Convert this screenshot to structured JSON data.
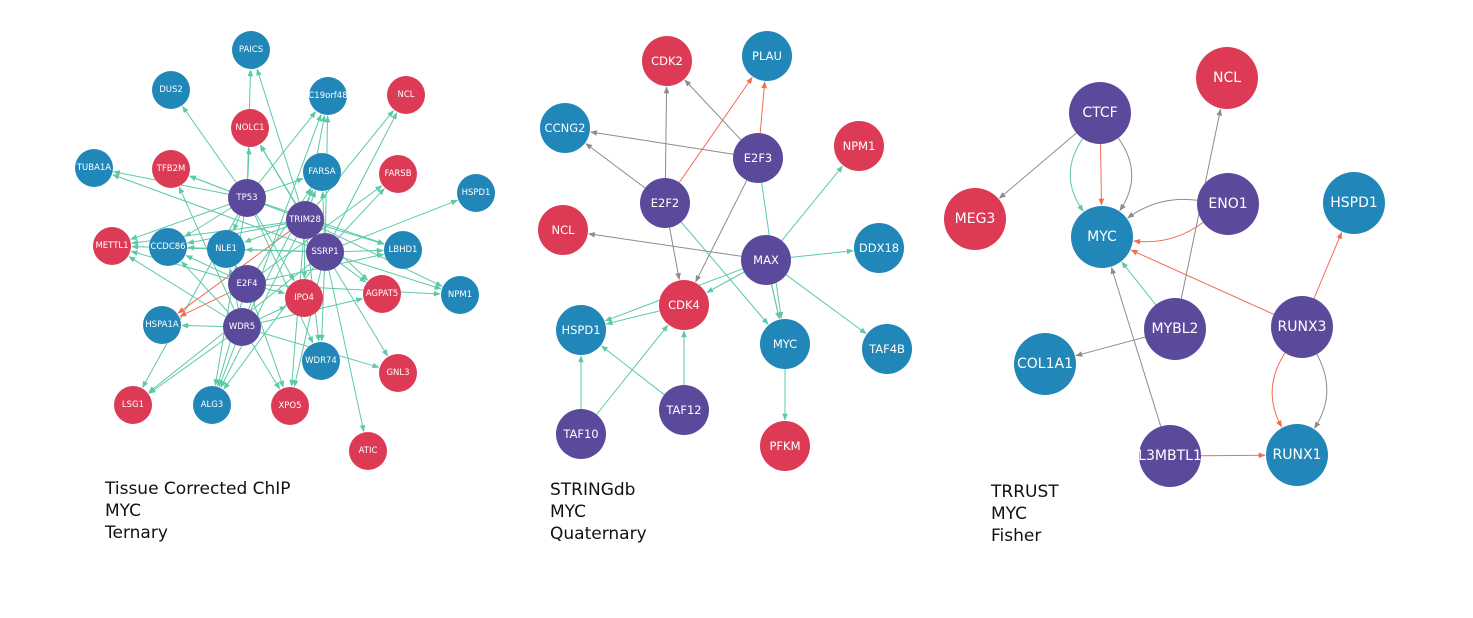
{
  "colors": {
    "gene_red": "#dc3a55",
    "gene_blue": "#2186b8",
    "tf_purple": "#5b4a9c",
    "edge_teal": "#5cc9a7",
    "edge_gray": "#8c8c8c",
    "edge_red": "#f26c52"
  },
  "networks": [
    {
      "id": "chip",
      "caption": [
        "Tissue Corrected ChIP",
        "MYC",
        "Ternary"
      ],
      "nodes": [
        {
          "id": "PAICS",
          "c": "blue"
        },
        {
          "id": "DUS2",
          "c": "blue"
        },
        {
          "id": "C19orf48",
          "c": "blue"
        },
        {
          "id": "NCL",
          "c": "red"
        },
        {
          "id": "NOLC1",
          "c": "red"
        },
        {
          "id": "TUBA1A",
          "c": "blue"
        },
        {
          "id": "TFB2M",
          "c": "red"
        },
        {
          "id": "FARSA",
          "c": "blue"
        },
        {
          "id": "FARSB",
          "c": "red"
        },
        {
          "id": "HSPD1",
          "c": "blue"
        },
        {
          "id": "TP53",
          "c": "purple"
        },
        {
          "id": "TRIM28",
          "c": "purple"
        },
        {
          "id": "METTL1",
          "c": "red"
        },
        {
          "id": "CCDC86",
          "c": "blue"
        },
        {
          "id": "NLE1",
          "c": "blue"
        },
        {
          "id": "SSRP1",
          "c": "purple"
        },
        {
          "id": "LBHD1",
          "c": "blue"
        },
        {
          "id": "E2F4",
          "c": "purple"
        },
        {
          "id": "IPO4",
          "c": "red"
        },
        {
          "id": "AGPAT5",
          "c": "red"
        },
        {
          "id": "NPM1",
          "c": "blue"
        },
        {
          "id": "HSPA1A",
          "c": "blue"
        },
        {
          "id": "WDR5",
          "c": "purple"
        },
        {
          "id": "WDR74",
          "c": "blue"
        },
        {
          "id": "GNL3",
          "c": "red"
        },
        {
          "id": "LSG1",
          "c": "red"
        },
        {
          "id": "ALG3",
          "c": "blue"
        },
        {
          "id": "XPO5",
          "c": "red"
        },
        {
          "id": "ATIC",
          "c": "red"
        }
      ],
      "edges": [
        [
          "TP53",
          "PAICS",
          "t"
        ],
        [
          "TP53",
          "DUS2",
          "t"
        ],
        [
          "TP53",
          "TUBA1A",
          "t"
        ],
        [
          "TP53",
          "TFB2M",
          "t"
        ],
        [
          "TP53",
          "NOLC1",
          "t"
        ],
        [
          "TP53",
          "C19orf48",
          "t"
        ],
        [
          "TP53",
          "FARSA",
          "t"
        ],
        [
          "TP53",
          "METTL1",
          "t"
        ],
        [
          "TP53",
          "CCDC86",
          "t"
        ],
        [
          "TP53",
          "NLE1",
          "t"
        ],
        [
          "TP53",
          "LBHD1",
          "t"
        ],
        [
          "TP53",
          "IPO4",
          "t"
        ],
        [
          "TP53",
          "ALG3",
          "t"
        ],
        [
          "TP53",
          "WDR74",
          "t"
        ],
        [
          "TP53",
          "LSG1",
          "t"
        ],
        [
          "TRIM28",
          "PAICS",
          "t"
        ],
        [
          "TRIM28",
          "C19orf48",
          "t"
        ],
        [
          "TRIM28",
          "NCL",
          "t"
        ],
        [
          "TRIM28",
          "FARSA",
          "t"
        ],
        [
          "TRIM28",
          "NOLC1",
          "t"
        ],
        [
          "TRIM28",
          "TFB2M",
          "t"
        ],
        [
          "TRIM28",
          "CCDC86",
          "t"
        ],
        [
          "TRIM28",
          "NLE1",
          "t"
        ],
        [
          "TRIM28",
          "LBHD1",
          "t"
        ],
        [
          "TRIM28",
          "NPM1",
          "t"
        ],
        [
          "TRIM28",
          "AGPAT5",
          "t"
        ],
        [
          "TRIM28",
          "HSPA1A",
          "r"
        ],
        [
          "TRIM28",
          "IPO4",
          "t"
        ],
        [
          "TRIM28",
          "WDR74",
          "t"
        ],
        [
          "TRIM28",
          "GNL3",
          "t"
        ],
        [
          "TRIM28",
          "XPO5",
          "t"
        ],
        [
          "TRIM28",
          "ALG3",
          "t"
        ],
        [
          "TRIM28",
          "METTL1",
          "t"
        ],
        [
          "SSRP1",
          "HSPD1",
          "t"
        ],
        [
          "SSRP1",
          "NCL",
          "t"
        ],
        [
          "SSRP1",
          "FARSB",
          "t"
        ],
        [
          "SSRP1",
          "C19orf48",
          "t"
        ],
        [
          "SSRP1",
          "FARSA",
          "t"
        ],
        [
          "SSRP1",
          "LBHD1",
          "t"
        ],
        [
          "SSRP1",
          "NPM1",
          "t"
        ],
        [
          "SSRP1",
          "AGPAT5",
          "t"
        ],
        [
          "SSRP1",
          "ATIC",
          "t"
        ],
        [
          "SSRP1",
          "WDR74",
          "t"
        ],
        [
          "SSRP1",
          "NLE1",
          "t"
        ],
        [
          "SSRP1",
          "CCDC86",
          "t"
        ],
        [
          "SSRP1",
          "METTL1",
          "t"
        ],
        [
          "SSRP1",
          "LSG1",
          "t"
        ],
        [
          "SSRP1",
          "ALG3",
          "t"
        ],
        [
          "SSRP1",
          "XPO5",
          "t"
        ],
        [
          "SSRP1",
          "TUBA1A",
          "t"
        ],
        [
          "SSRP1",
          "NOLC1",
          "t"
        ],
        [
          "E2F4",
          "METTL1",
          "t"
        ],
        [
          "E2F4",
          "CCDC86",
          "t"
        ],
        [
          "E2F4",
          "NLE1",
          "t"
        ],
        [
          "E2F4",
          "HSPA1A",
          "r"
        ],
        [
          "E2F4",
          "FARSA",
          "t"
        ],
        [
          "E2F4",
          "FARSB",
          "t"
        ],
        [
          "E2F4",
          "LBHD1",
          "t"
        ],
        [
          "E2F4",
          "NPM1",
          "t"
        ],
        [
          "E2F4",
          "IPO4",
          "t"
        ],
        [
          "E2F4",
          "XPO5",
          "t"
        ],
        [
          "E2F4",
          "ALG3",
          "t"
        ],
        [
          "WDR5",
          "METTL1",
          "t"
        ],
        [
          "WDR5",
          "CCDC86",
          "t"
        ],
        [
          "WDR5",
          "NLE1",
          "t"
        ],
        [
          "WDR5",
          "LSG1",
          "t"
        ],
        [
          "WDR5",
          "ALG3",
          "t"
        ],
        [
          "WDR5",
          "XPO5",
          "t"
        ],
        [
          "WDR5",
          "GNL3",
          "t"
        ],
        [
          "WDR5",
          "AGPAT5",
          "t"
        ],
        [
          "WDR5",
          "IPO4",
          "t"
        ],
        [
          "WDR5",
          "FARSA",
          "t"
        ],
        [
          "WDR5",
          "TFB2M",
          "t"
        ],
        [
          "WDR5",
          "HSPA1A",
          "t"
        ],
        [
          "WDR5",
          "C19orf48",
          "t"
        ]
      ]
    },
    {
      "id": "string",
      "caption": [
        "STRINGdb",
        "MYC",
        "Quaternary"
      ],
      "nodes": [
        {
          "id": "CDK2",
          "c": "red"
        },
        {
          "id": "PLAU",
          "c": "blue"
        },
        {
          "id": "CCNG2",
          "c": "blue"
        },
        {
          "id": "E2F3",
          "c": "purple"
        },
        {
          "id": "NPM1",
          "c": "red"
        },
        {
          "id": "E2F2",
          "c": "purple"
        },
        {
          "id": "NCL",
          "c": "red"
        },
        {
          "id": "MAX",
          "c": "purple"
        },
        {
          "id": "DDX18",
          "c": "blue"
        },
        {
          "id": "CDK4",
          "c": "red"
        },
        {
          "id": "HSPD1",
          "c": "blue"
        },
        {
          "id": "MYC",
          "c": "blue"
        },
        {
          "id": "TAF4B",
          "c": "blue"
        },
        {
          "id": "TAF12",
          "c": "purple"
        },
        {
          "id": "TAF10",
          "c": "purple"
        },
        {
          "id": "PFKM",
          "c": "red"
        }
      ],
      "edges": [
        [
          "E2F2",
          "CDK2",
          "g"
        ],
        [
          "E2F2",
          "PLAU",
          "r"
        ],
        [
          "E2F2",
          "CCNG2",
          "g"
        ],
        [
          "E2F2",
          "CDK4",
          "g"
        ],
        [
          "E2F2",
          "MYC",
          "t"
        ],
        [
          "E2F3",
          "CDK2",
          "g"
        ],
        [
          "E2F3",
          "PLAU",
          "r"
        ],
        [
          "E2F3",
          "CCNG2",
          "g"
        ],
        [
          "E2F3",
          "CDK4",
          "g"
        ],
        [
          "E2F3",
          "MYC",
          "t"
        ],
        [
          "MAX",
          "NCL",
          "g"
        ],
        [
          "MAX",
          "NPM1",
          "t"
        ],
        [
          "MAX",
          "DDX18",
          "t"
        ],
        [
          "MAX",
          "TAF4B",
          "t"
        ],
        [
          "MAX",
          "CDK4",
          "t"
        ],
        [
          "MAX",
          "HSPD1",
          "t"
        ],
        [
          "MAX",
          "MYC",
          "r"
        ],
        [
          "MAX",
          "MYC",
          "t"
        ],
        [
          "CDK4",
          "HSPD1",
          "t"
        ],
        [
          "TAF10",
          "HSPD1",
          "t"
        ],
        [
          "TAF10",
          "CDK4",
          "t"
        ],
        [
          "TAF12",
          "CDK4",
          "t"
        ],
        [
          "TAF12",
          "HSPD1",
          "t"
        ],
        [
          "MYC",
          "PFKM",
          "t"
        ]
      ]
    },
    {
      "id": "trrust",
      "caption": [
        "TRRUST",
        "MYC",
        "Fisher"
      ],
      "nodes": [
        {
          "id": "CTCF",
          "c": "purple"
        },
        {
          "id": "NCL",
          "c": "red"
        },
        {
          "id": "MEG3",
          "c": "red"
        },
        {
          "id": "ENO1",
          "c": "purple"
        },
        {
          "id": "MYC",
          "c": "blue"
        },
        {
          "id": "HSPD1",
          "c": "blue"
        },
        {
          "id": "MYBL2",
          "c": "purple"
        },
        {
          "id": "RUNX3",
          "c": "purple"
        },
        {
          "id": "COL1A1",
          "c": "blue"
        },
        {
          "id": "L3MBTL1",
          "c": "purple"
        },
        {
          "id": "RUNX1",
          "c": "blue"
        }
      ],
      "edges": [
        [
          "CTCF",
          "MEG3",
          "g"
        ],
        [
          "CTCF",
          "MYC",
          "r",
          0
        ],
        [
          "CTCF",
          "MYC",
          "t",
          0.35
        ],
        [
          "CTCF",
          "MYC",
          "g",
          -0.35
        ],
        [
          "ENO1",
          "MYC",
          "g",
          0.2
        ],
        [
          "ENO1",
          "MYC",
          "r",
          -0.2
        ],
        [
          "MYBL2",
          "NCL",
          "g"
        ],
        [
          "MYBL2",
          "MYC",
          "t"
        ],
        [
          "MYBL2",
          "COL1A1",
          "g"
        ],
        [
          "RUNX3",
          "MYC",
          "r"
        ],
        [
          "RUNX3",
          "HSPD1",
          "r"
        ],
        [
          "RUNX3",
          "RUNX1",
          "r",
          0.3
        ],
        [
          "RUNX3",
          "RUNX1",
          "g",
          -0.3
        ],
        [
          "L3MBTL1",
          "MYC",
          "g"
        ],
        [
          "L3MBTL1",
          "RUNX1",
          "r"
        ]
      ]
    }
  ]
}
